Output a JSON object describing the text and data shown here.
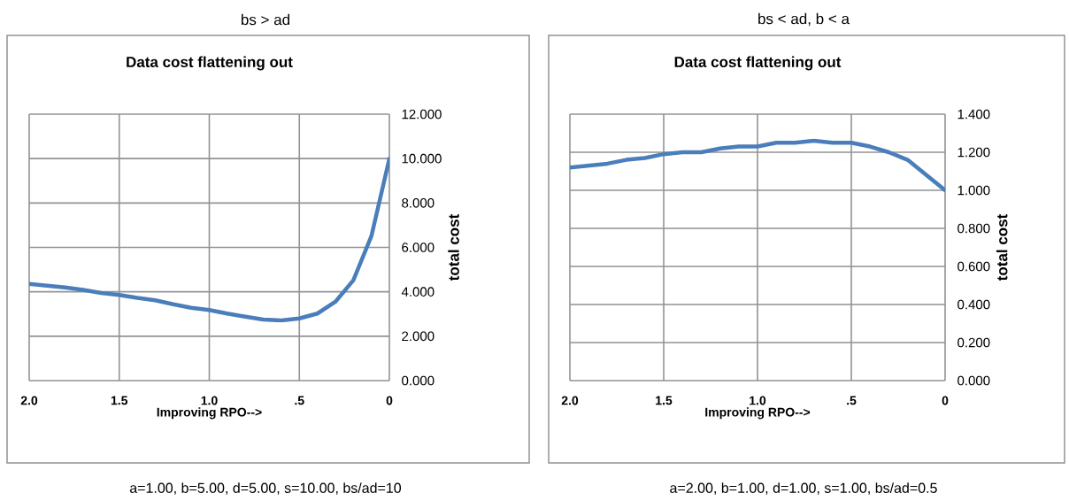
{
  "chart_data": [
    {
      "type": "line",
      "title": "bs > ad",
      "subtitle": "Data cost flattening out",
      "xlabel": "Improving RPO-->",
      "ylabel": "total cost",
      "annotations": [
        "a=1.00, b=5.00, d=5.00, s=10.00, bs/ad=10"
      ],
      "x": [
        2.0,
        1.9,
        1.8,
        1.7,
        1.6,
        1.5,
        1.4,
        1.3,
        1.2,
        1.1,
        1.0,
        0.9,
        0.8,
        0.7,
        0.6,
        0.5,
        0.4,
        0.3,
        0.2,
        0.1,
        0.0
      ],
      "series": [
        {
          "color": "#4a7ebb",
          "values": [
            4.36,
            4.28,
            4.2,
            4.09,
            3.95,
            3.86,
            3.73,
            3.62,
            3.44,
            3.28,
            3.18,
            3.02,
            2.88,
            2.75,
            2.71,
            2.8,
            3.02,
            3.55,
            4.52,
            6.5,
            10.0
          ]
        }
      ],
      "xlim": [
        2.0,
        0.0
      ],
      "xticks": [
        {
          "value": 2.0,
          "label": "2.0"
        },
        {
          "value": 1.5,
          "label": "1.5"
        },
        {
          "value": 1.0,
          "label": "1.0"
        },
        {
          "value": 0.5,
          "label": ".5"
        },
        0
      ],
      "ylim": [
        0,
        12
      ],
      "yticks": [
        {
          "value": 0,
          "label": "0.000"
        },
        {
          "value": 2,
          "label": "2.000"
        },
        {
          "value": 4,
          "label": "4.000"
        },
        {
          "value": 6,
          "label": "6.000"
        },
        {
          "value": 8,
          "label": "8.000"
        },
        {
          "value": 10,
          "label": "10.000"
        },
        {
          "value": 12,
          "label": "12.000"
        }
      ],
      "grid": true,
      "marker": "none",
      "line_style": "solid"
    },
    {
      "type": "line",
      "title": "bs < ad, b < a",
      "subtitle": "Data cost flattening out",
      "xlabel": "Improving RPO-->",
      "ylabel": "total cost",
      "annotations": [
        "a=2.00, b=1.00, d=1.00, s=1.00, bs/ad=0.5"
      ],
      "x": [
        2.0,
        1.8,
        1.7,
        1.6,
        1.5,
        1.4,
        1.3,
        1.2,
        1.1,
        1.0,
        0.9,
        0.8,
        0.7,
        0.6,
        0.5,
        0.4,
        0.3,
        0.2,
        0.1,
        0.0
      ],
      "series": [
        {
          "color": "#4a7ebb",
          "values": [
            1.12,
            1.14,
            1.16,
            1.17,
            1.19,
            1.2,
            1.2,
            1.22,
            1.23,
            1.23,
            1.25,
            1.25,
            1.26,
            1.25,
            1.25,
            1.23,
            1.2,
            1.16,
            1.08,
            1.0
          ]
        }
      ],
      "xlim": [
        2.0,
        0.0
      ],
      "xticks": [
        {
          "value": 2.0,
          "label": "2.0"
        },
        {
          "value": 1.5,
          "label": "1.5"
        },
        {
          "value": 1.0,
          "label": "1.0"
        },
        {
          "value": 0.5,
          "label": ".5"
        },
        0
      ],
      "ylim": [
        0,
        1.4
      ],
      "yticks": [
        {
          "value": 0,
          "label": "0.000"
        },
        {
          "value": 0.2,
          "label": "0.200"
        },
        {
          "value": 0.4,
          "label": "0.400"
        },
        {
          "value": 0.6,
          "label": "0.600"
        },
        {
          "value": 0.8,
          "label": "0.800"
        },
        {
          "value": 1.0,
          "label": "1.000"
        },
        {
          "value": 1.2,
          "label": "1.200"
        },
        {
          "value": 1.4,
          "label": "1.400"
        }
      ],
      "grid": true,
      "marker": "none",
      "line_style": "solid"
    }
  ]
}
